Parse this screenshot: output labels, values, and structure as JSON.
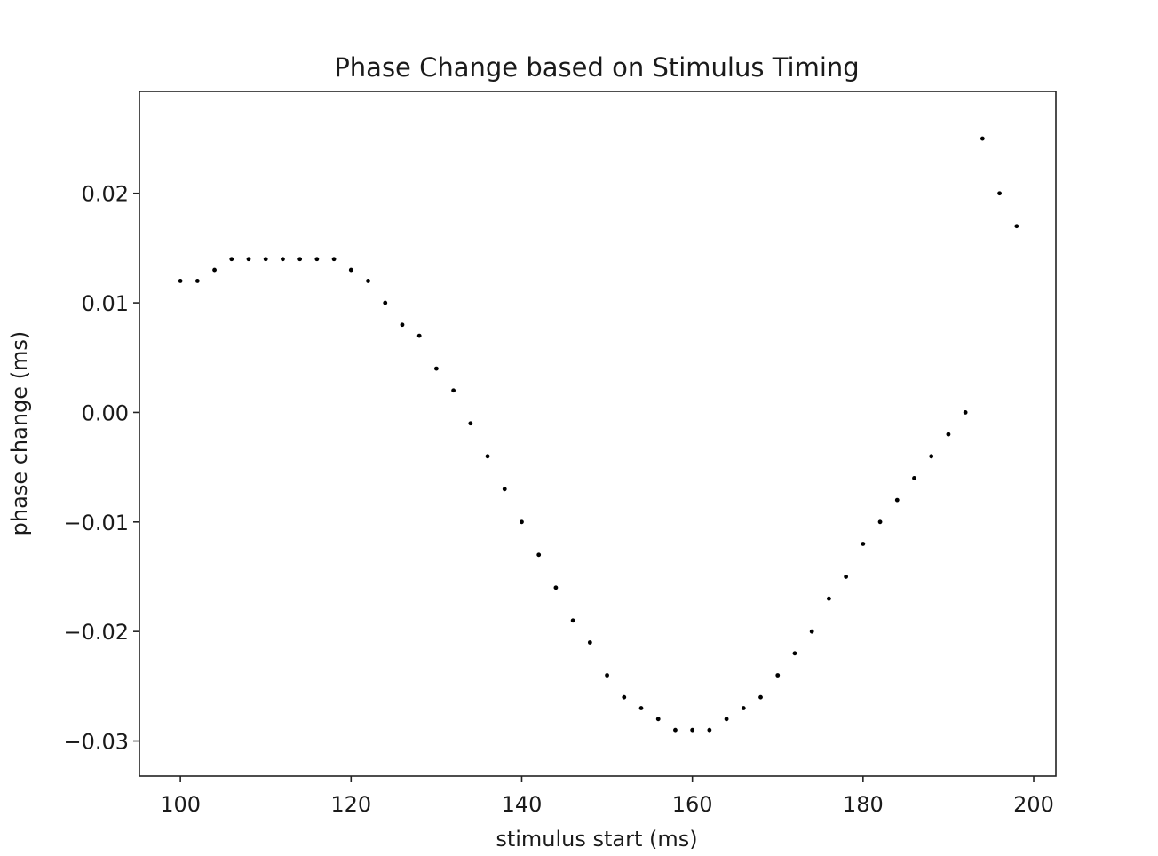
{
  "chart_data": {
    "type": "scatter",
    "title": "Phase Change based on Stimulus Timing",
    "xlabel": "stimulus start (ms)",
    "ylabel": "phase change (ms)",
    "xlim": [
      95.2,
      202.6
    ],
    "ylim": [
      -0.0332,
      0.0293
    ],
    "xticks": [
      100,
      120,
      140,
      160,
      180,
      200
    ],
    "xtick_labels": [
      "100",
      "120",
      "140",
      "160",
      "180",
      "200"
    ],
    "yticks": [
      0.02,
      0.01,
      0.0,
      -0.01,
      -0.02,
      -0.03
    ],
    "ytick_labels": [
      "0.02",
      "0.01",
      "0.00",
      "−0.01",
      "−0.02",
      "−0.03"
    ],
    "grid": false,
    "marker_color": "#000000",
    "series": [
      {
        "x": [
          100,
          102,
          104,
          106,
          108,
          110,
          112,
          114,
          116,
          118,
          120,
          122,
          124,
          126,
          128,
          130,
          132,
          134,
          136,
          138,
          140,
          142,
          144,
          146,
          148,
          150,
          152,
          154,
          156,
          158,
          160,
          162,
          164,
          166,
          168,
          170,
          172,
          174,
          176,
          178,
          180,
          182,
          184,
          186,
          188,
          190,
          192,
          194,
          196,
          198
        ],
        "y": [
          0.012,
          0.012,
          0.013,
          0.014,
          0.014,
          0.014,
          0.014,
          0.014,
          0.014,
          0.014,
          0.013,
          0.012,
          0.01,
          0.008,
          0.007,
          0.004,
          0.002,
          -0.001,
          -0.004,
          -0.007,
          -0.01,
          -0.013,
          -0.016,
          -0.019,
          -0.021,
          -0.024,
          -0.026,
          -0.027,
          -0.028,
          -0.029,
          -0.029,
          -0.029,
          -0.028,
          -0.027,
          -0.026,
          -0.024,
          -0.022,
          -0.02,
          -0.017,
          -0.015,
          -0.012,
          -0.01,
          -0.008,
          -0.006,
          -0.004,
          -0.002,
          0.0,
          0.025,
          0.02,
          0.017
        ]
      }
    ]
  }
}
